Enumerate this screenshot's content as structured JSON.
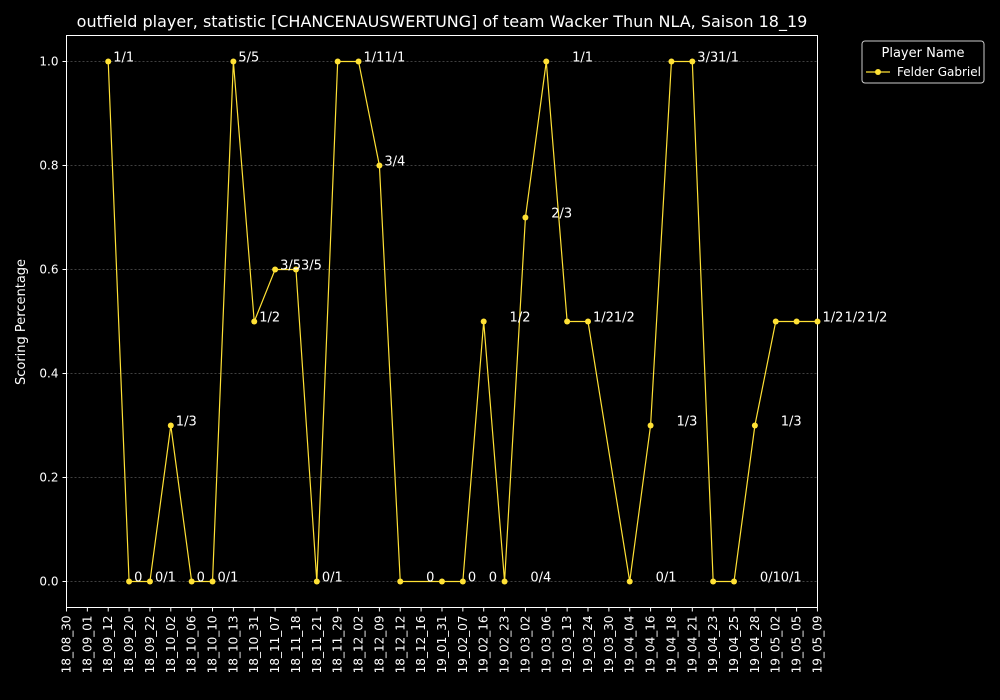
{
  "chart_data": {
    "type": "line",
    "title": "outfield player, statistic [CHANCENAUSWERTUNG] of team Wacker Thun NLA, Saison 18_19",
    "xlabel": "",
    "ylabel": "Scoring Percentage",
    "ylim": [
      -0.05,
      1.05
    ],
    "yticks": [
      0.0,
      0.2,
      0.4,
      0.6,
      0.8,
      1.0
    ],
    "ytick_labels": [
      "0.0",
      "0.2",
      "0.4",
      "0.6",
      "0.8",
      "1.0"
    ],
    "grid": true,
    "legend": {
      "title": "Player Name",
      "placement": "outside-top-right"
    },
    "colors": {
      "line": "#FFE135",
      "background": "#000000",
      "text": "#FFFFFF",
      "grid": "#808080"
    },
    "categories": [
      "18_08_30",
      "18_09_01",
      "18_09_12",
      "18_09_20",
      "18_09_22",
      "18_10_02",
      "18_10_06",
      "18_10_10",
      "18_10_13",
      "18_10_31",
      "18_11_07",
      "18_11_18",
      "18_11_21",
      "18_11_29",
      "18_12_02",
      "18_12_09",
      "18_12_12",
      "18_12_16",
      "19_01_31",
      "19_02_07",
      "19_02_16",
      "19_02_23",
      "19_03_02",
      "19_03_06",
      "19_03_13",
      "19_03_24",
      "19_03_30",
      "19_04_04",
      "19_04_16",
      "19_04_18",
      "19_04_21",
      "19_04_23",
      "19_04_25",
      "19_04_28",
      "19_05_02",
      "19_05_05",
      "19_05_09"
    ],
    "series": [
      {
        "name": "Felder Gabriel",
        "values": [
          null,
          null,
          1.0,
          0.0,
          0.0,
          0.3,
          0.0,
          0.0,
          1.0,
          0.5,
          0.6,
          0.6,
          0.0,
          1.0,
          1.0,
          0.8,
          0.0,
          null,
          0.0,
          0.0,
          0.5,
          0.0,
          0.7,
          1.0,
          0.5,
          0.5,
          null,
          0.0,
          0.3,
          1.0,
          1.0,
          0.0,
          0.0,
          0.3,
          0.5,
          0.5,
          0.5
        ]
      }
    ],
    "annotations": [
      {
        "x": "18_09_12",
        "y": 1.0,
        "text": "1/1"
      },
      {
        "x": "18_09_20",
        "y": 0.0,
        "text": "0"
      },
      {
        "x": "18_09_22",
        "y": 0.0,
        "text": "0/1"
      },
      {
        "x": "18_10_02",
        "y": 0.3,
        "text": "1/3"
      },
      {
        "x": "18_10_06",
        "y": 0.0,
        "text": "0"
      },
      {
        "x": "18_10_10",
        "y": 0.0,
        "text": "0/1"
      },
      {
        "x": "18_10_13",
        "y": 1.0,
        "text": "5/5"
      },
      {
        "x": "18_10_31",
        "y": 0.5,
        "text": "1/2"
      },
      {
        "x": "18_11_07",
        "y": 0.6,
        "text": "3/5"
      },
      {
        "x": "18_11_18",
        "y": 0.6,
        "text": "3/5"
      },
      {
        "x": "18_11_21",
        "y": 0.0,
        "text": "0/1"
      },
      {
        "x": "18_12_02",
        "y": 1.0,
        "text": "1/1"
      },
      {
        "x": "18_12_09",
        "y": 1.0,
        "text": "1/1"
      },
      {
        "x": "18_12_09",
        "y": 0.8,
        "text": "3/4"
      },
      {
        "x": "18_12_16",
        "y": 0.0,
        "text": "0"
      },
      {
        "x": "19_02_07",
        "y": 0.0,
        "text": "0"
      },
      {
        "x": "19_02_16",
        "y": 0.0,
        "text": "0"
      },
      {
        "x": "19_02_23",
        "y": 0.5,
        "text": "1/2"
      },
      {
        "x": "19_03_02",
        "y": 0.0,
        "text": "0/4"
      },
      {
        "x": "19_03_06",
        "y": 0.7,
        "text": "2/3"
      },
      {
        "x": "19_03_13",
        "y": 1.0,
        "text": "1/1"
      },
      {
        "x": "19_03_24",
        "y": 0.5,
        "text": "1/2"
      },
      {
        "x": "19_03_30",
        "y": 0.5,
        "text": "1/2"
      },
      {
        "x": "19_04_16",
        "y": 0.0,
        "text": "0/1"
      },
      {
        "x": "19_04_18",
        "y": 0.3,
        "text": "1/3"
      },
      {
        "x": "19_04_21",
        "y": 1.0,
        "text": "3/3"
      },
      {
        "x": "19_04_23",
        "y": 1.0,
        "text": "1/1"
      },
      {
        "x": "19_04_28",
        "y": 0.0,
        "text": "0/1"
      },
      {
        "x": "19_05_02",
        "y": 0.0,
        "text": "0/1"
      },
      {
        "x": "19_05_02",
        "y": 0.3,
        "text": "1/3"
      },
      {
        "x": "19_05_09",
        "y": 0.5,
        "text": "1/2"
      },
      {
        "x": "19_05_09",
        "y": 0.5,
        "text": "1/2"
      },
      {
        "x": "19_05_09",
        "y": 0.5,
        "text": "1/2"
      }
    ]
  }
}
